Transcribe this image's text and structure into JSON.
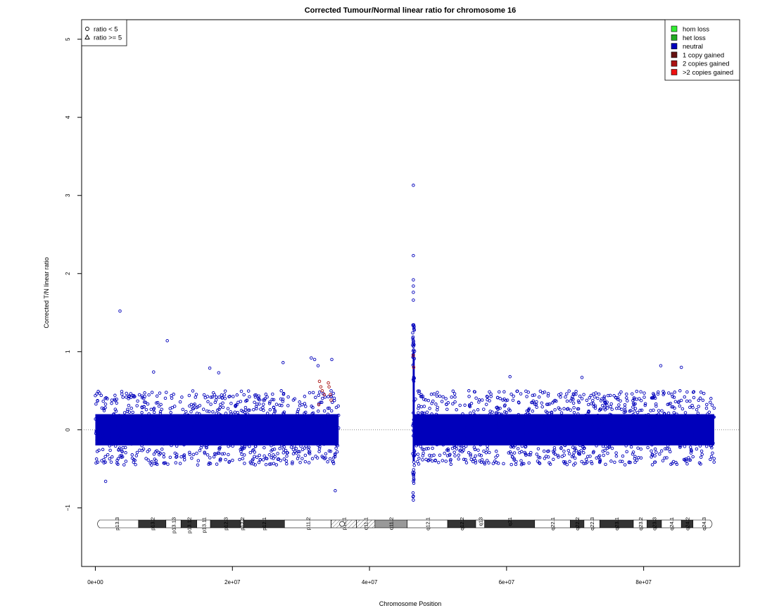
{
  "chart_data": {
    "type": "scatter",
    "title": "Corrected Tumour/Normal linear ratio for chromosome  16",
    "xlabel": "Chromosome Position",
    "ylabel": "Corrected T/N linear ratio",
    "xlim": [
      -2000000,
      94000000
    ],
    "ylim": [
      -1.75,
      5.25
    ],
    "x_ticks": [
      0,
      20000000,
      40000000,
      60000000,
      80000000
    ],
    "x_tick_labels": [
      "0e+00",
      "2e+07",
      "4e+07",
      "6e+07",
      "8e+07"
    ],
    "y_ticks": [
      -1,
      0,
      1,
      2,
      3,
      4,
      5
    ],
    "y_tick_labels": [
      "−1",
      "0",
      "1",
      "2",
      "3",
      "4",
      "5"
    ],
    "reference_line": 0,
    "shape_legend": {
      "position": "top-left",
      "items": [
        {
          "label": "ratio < 5",
          "shape": "circle"
        },
        {
          "label": "ratio >= 5",
          "shape": "triangle"
        }
      ]
    },
    "color_legend": {
      "position": "top-right",
      "items": [
        {
          "label": "hom loss",
          "color": "#33ee33"
        },
        {
          "label": "het loss",
          "color": "#22aa22"
        },
        {
          "label": "neutral",
          "color": "#0000bb"
        },
        {
          "label": "1 copy gained",
          "color": "#661111"
        },
        {
          "label": "2 copies gained",
          "color": "#aa1111"
        },
        {
          "label": ">2 copies gained",
          "color": "#ee1111"
        }
      ]
    },
    "point_colors": {
      "neutral": "#0000bb",
      "gained": "#aa1111"
    },
    "point_regions": [
      {
        "x_range": [
          0,
          35500000
        ],
        "y_core": [
          -0.2,
          0.2
        ],
        "y_spread": [
          -0.45,
          0.5
        ],
        "state": "neutral"
      },
      {
        "x_range": [
          46300000,
          46600000
        ],
        "y_core": [
          -0.4,
          1.0
        ],
        "y_spread": [
          -0.9,
          1.35
        ],
        "state": "neutral"
      },
      {
        "x_range": [
          46500000,
          90300000
        ],
        "y_core": [
          -0.2,
          0.2
        ],
        "y_spread": [
          -0.45,
          0.5
        ],
        "state": "neutral"
      }
    ],
    "outliers": [
      {
        "x": 3600000,
        "y": 1.52
      },
      {
        "x": 10500000,
        "y": 1.14
      },
      {
        "x": 1500000,
        "y": -0.66
      },
      {
        "x": 35000000,
        "y": -0.78
      },
      {
        "x": 46400000,
        "y": 3.13
      },
      {
        "x": 46400000,
        "y": 2.23
      },
      {
        "x": 46400000,
        "y": 1.92
      },
      {
        "x": 46400000,
        "y": 1.84
      },
      {
        "x": 46400000,
        "y": 1.76
      },
      {
        "x": 46400000,
        "y": 1.66
      },
      {
        "x": 46400000,
        "y": -0.9
      },
      {
        "x": 46400000,
        "y": -0.85
      },
      {
        "x": 27400000,
        "y": 0.86
      },
      {
        "x": 31500000,
        "y": 0.92
      },
      {
        "x": 32000000,
        "y": 0.9
      },
      {
        "x": 32500000,
        "y": 0.82
      },
      {
        "x": 34500000,
        "y": 0.9
      },
      {
        "x": 8500000,
        "y": 0.74
      },
      {
        "x": 16700000,
        "y": 0.79
      },
      {
        "x": 18000000,
        "y": 0.73
      },
      {
        "x": 82500000,
        "y": 0.82
      },
      {
        "x": 85500000,
        "y": 0.8
      },
      {
        "x": 60500000,
        "y": 0.68
      },
      {
        "x": 71000000,
        "y": 0.67
      }
    ],
    "gained_points": [
      {
        "x": 32700000,
        "y": 0.62
      },
      {
        "x": 32900000,
        "y": 0.55
      },
      {
        "x": 33100000,
        "y": 0.5
      },
      {
        "x": 33400000,
        "y": 0.45
      },
      {
        "x": 34000000,
        "y": 0.6
      },
      {
        "x": 34100000,
        "y": 0.55
      },
      {
        "x": 34300000,
        "y": 0.45
      },
      {
        "x": 34400000,
        "y": 0.38
      },
      {
        "x": 32600000,
        "y": 0.32
      },
      {
        "x": 46400000,
        "y": 0.95
      },
      {
        "x": 46450000,
        "y": 0.8
      }
    ],
    "ideogram": {
      "length": 90300000,
      "centromere": 36000000,
      "bands": [
        {
          "name": "p13.3",
          "start": 0,
          "end": 6300000,
          "stain": "gneg"
        },
        {
          "name": "p13.2",
          "start": 6300000,
          "end": 10300000,
          "stain": "gpos"
        },
        {
          "name": "p13.13",
          "start": 10300000,
          "end": 12500000,
          "stain": "gneg"
        },
        {
          "name": "p13.12",
          "start": 12500000,
          "end": 14800000,
          "stain": "gpos"
        },
        {
          "name": "p13.11",
          "start": 14800000,
          "end": 16800000,
          "stain": "gneg"
        },
        {
          "name": "p12.3",
          "start": 16800000,
          "end": 21200000,
          "stain": "gpos"
        },
        {
          "name": "p12.2",
          "start": 21200000,
          "end": 21600000,
          "stain": "gneg"
        },
        {
          "name": "p12.1",
          "start": 21600000,
          "end": 27600000,
          "stain": "gpos"
        },
        {
          "name": "p11.2",
          "start": 27600000,
          "end": 34400000,
          "stain": "gneg"
        },
        {
          "name": "p11.1",
          "start": 34400000,
          "end": 38100000,
          "stain": "acen"
        },
        {
          "name": "q11.1",
          "start": 38100000,
          "end": 40800000,
          "stain": "acen"
        },
        {
          "name": "q11.2",
          "start": 40800000,
          "end": 45500000,
          "stain": "gvar"
        },
        {
          "name": "q12.1",
          "start": 45500000,
          "end": 51400000,
          "stain": "gneg"
        },
        {
          "name": "q12.2",
          "start": 51400000,
          "end": 55500000,
          "stain": "gpos"
        },
        {
          "name": "q13",
          "start": 55500000,
          "end": 56800000,
          "stain": "gneg"
        },
        {
          "name": "q21",
          "start": 56800000,
          "end": 64100000,
          "stain": "gpos"
        },
        {
          "name": "q22.1",
          "start": 64100000,
          "end": 69300000,
          "stain": "gneg"
        },
        {
          "name": "q22.2",
          "start": 69300000,
          "end": 71300000,
          "stain": "gpos"
        },
        {
          "name": "q22.3",
          "start": 71300000,
          "end": 73600000,
          "stain": "gneg"
        },
        {
          "name": "q23.1",
          "start": 73600000,
          "end": 78500000,
          "stain": "gpos"
        },
        {
          "name": "q23.2",
          "start": 78500000,
          "end": 80500000,
          "stain": "gneg"
        },
        {
          "name": "q23.3",
          "start": 80500000,
          "end": 82600000,
          "stain": "gpos"
        },
        {
          "name": "q24.1",
          "start": 82600000,
          "end": 85500000,
          "stain": "gneg"
        },
        {
          "name": "q24.2",
          "start": 85500000,
          "end": 87200000,
          "stain": "gpos"
        },
        {
          "name": "q24.3",
          "start": 87200000,
          "end": 90300000,
          "stain": "gneg"
        }
      ]
    }
  }
}
